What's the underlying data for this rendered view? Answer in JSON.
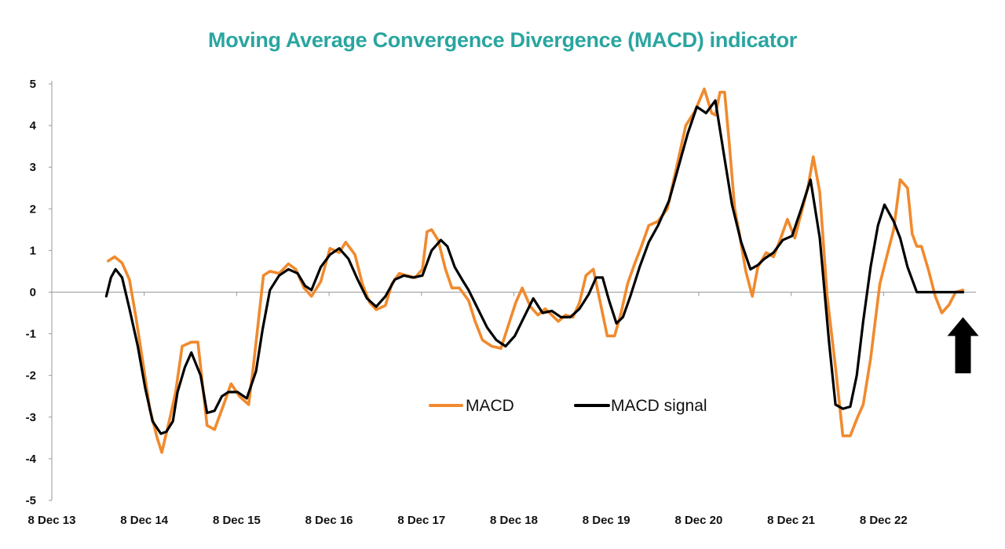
{
  "chart_data": {
    "type": "line",
    "title": "Moving Average Convergence Divergence (MACD) indicator",
    "xlabel": "",
    "ylabel": "",
    "ylim": [
      -5,
      5
    ],
    "y_ticks": [
      "5",
      "4",
      "3",
      "2",
      "1",
      "0",
      "-1",
      "-2",
      "-3",
      "-4",
      "-5"
    ],
    "x_ticks": [
      "8 Dec 13",
      "8 Dec 14",
      "8 Dec 15",
      "8 Dec 16",
      "8 Dec 17",
      "8 Dec 18",
      "8 Dec 19",
      "8 Dec 20",
      "8 Dec 21",
      "8 Dec 22"
    ],
    "x_range": [
      2013.94,
      2023.94
    ],
    "legend_position": "center",
    "grid": false,
    "colors": {
      "title": "#2aa5a0",
      "macd": "#f08a2e",
      "signal": "#000000",
      "axis": "#999999",
      "arrow": "#000000"
    },
    "annotation": {
      "icon": "up-arrow-icon",
      "x": 2023.8,
      "y_tip": -0.6,
      "y_base": -1.95
    },
    "series": [
      {
        "name": "MACD",
        "x": [
          2014.55,
          2014.62,
          2014.7,
          2014.78,
          2014.85,
          2014.92,
          2015.0,
          2015.08,
          2015.13,
          2015.22,
          2015.28,
          2015.35,
          2015.45,
          2015.52,
          2015.57,
          2015.62,
          2015.7,
          2015.8,
          2015.88,
          2015.97,
          2016.07,
          2016.12,
          2016.17,
          2016.23,
          2016.3,
          2016.4,
          2016.5,
          2016.58,
          2016.67,
          2016.75,
          2016.85,
          2016.95,
          2017.05,
          2017.12,
          2017.22,
          2017.3,
          2017.38,
          2017.45,
          2017.55,
          2017.62,
          2017.7,
          2017.78,
          2017.87,
          2017.95,
          2018.0,
          2018.05,
          2018.12,
          2018.2,
          2018.27,
          2018.35,
          2018.45,
          2018.52,
          2018.6,
          2018.7,
          2018.8,
          2018.88,
          2018.96,
          2019.03,
          2019.12,
          2019.2,
          2019.28,
          2019.35,
          2019.42,
          2019.5,
          2019.58,
          2019.65,
          2019.72,
          2019.8,
          2019.88,
          2019.95,
          2020.03,
          2020.1,
          2020.17,
          2020.25,
          2020.32,
          2020.4,
          2020.5,
          2020.6,
          2020.7,
          2020.8,
          2020.9,
          2021.0,
          2021.08,
          2021.12,
          2021.17,
          2021.22,
          2021.27,
          2021.33,
          2021.38,
          2021.45,
          2021.52,
          2021.58,
          2021.67,
          2021.75,
          2021.82,
          2021.9,
          2021.98,
          2022.05,
          2022.12,
          2022.18,
          2022.25,
          2022.33,
          2022.42,
          2022.5,
          2022.58,
          2022.66,
          2022.72,
          2022.8,
          2022.9,
          2022.98,
          2023.05,
          2023.12,
          2023.2,
          2023.25,
          2023.3,
          2023.35,
          2023.43,
          2023.5,
          2023.57,
          2023.65,
          2023.72,
          2023.8
        ],
        "values": [
          0.75,
          0.85,
          0.7,
          0.3,
          -0.6,
          -1.6,
          -2.8,
          -3.5,
          -3.85,
          -3.0,
          -2.4,
          -1.3,
          -1.2,
          -1.2,
          -2.2,
          -3.2,
          -3.3,
          -2.7,
          -2.2,
          -2.5,
          -2.7,
          -1.8,
          -0.8,
          0.4,
          0.5,
          0.45,
          0.68,
          0.55,
          0.1,
          -0.1,
          0.25,
          1.05,
          0.95,
          1.2,
          0.9,
          0.2,
          -0.25,
          -0.42,
          -0.32,
          0.2,
          0.45,
          0.4,
          0.35,
          0.55,
          1.45,
          1.5,
          1.25,
          0.55,
          0.1,
          0.1,
          -0.2,
          -0.7,
          -1.15,
          -1.3,
          -1.35,
          -0.8,
          -0.25,
          0.1,
          -0.35,
          -0.55,
          -0.4,
          -0.55,
          -0.7,
          -0.55,
          -0.6,
          -0.25,
          0.4,
          0.55,
          -0.3,
          -1.05,
          -1.05,
          -0.5,
          0.2,
          0.7,
          1.1,
          1.6,
          1.7,
          2.0,
          3.0,
          4.0,
          4.35,
          4.88,
          4.3,
          4.25,
          4.8,
          4.8,
          3.6,
          2.0,
          1.4,
          0.5,
          -0.1,
          0.6,
          0.95,
          0.85,
          1.25,
          1.75,
          1.3,
          1.9,
          2.5,
          3.25,
          2.4,
          -0.1,
          -1.8,
          -3.45,
          -3.45,
          -3.0,
          -2.7,
          -1.6,
          0.2,
          0.9,
          1.5,
          2.7,
          2.5,
          1.4,
          1.1,
          1.1,
          0.5,
          -0.1,
          -0.5,
          -0.3,
          0.0,
          0.05
        ]
      },
      {
        "name": "MACD signal",
        "x": [
          2014.53,
          2014.58,
          2014.63,
          2014.7,
          2014.78,
          2014.87,
          2014.95,
          2015.03,
          2015.12,
          2015.18,
          2015.25,
          2015.3,
          2015.38,
          2015.45,
          2015.55,
          2015.62,
          2015.7,
          2015.78,
          2015.85,
          2015.95,
          2016.05,
          2016.15,
          2016.22,
          2016.3,
          2016.4,
          2016.5,
          2016.6,
          2016.68,
          2016.75,
          2016.85,
          2016.95,
          2017.05,
          2017.15,
          2017.25,
          2017.35,
          2017.45,
          2017.55,
          2017.65,
          2017.75,
          2017.85,
          2017.95,
          2018.05,
          2018.15,
          2018.22,
          2018.3,
          2018.38,
          2018.45,
          2018.55,
          2018.65,
          2018.75,
          2018.85,
          2018.95,
          2019.05,
          2019.15,
          2019.25,
          2019.35,
          2019.45,
          2019.55,
          2019.65,
          2019.75,
          2019.83,
          2019.9,
          2019.97,
          2020.05,
          2020.12,
          2020.2,
          2020.3,
          2020.4,
          2020.5,
          2020.62,
          2020.72,
          2020.82,
          2020.92,
          2021.02,
          2021.12,
          2021.22,
          2021.3,
          2021.4,
          2021.5,
          2021.58,
          2021.65,
          2021.75,
          2021.85,
          2021.95,
          2022.05,
          2022.15,
          2022.25,
          2022.35,
          2022.42,
          2022.5,
          2022.58,
          2022.65,
          2022.72,
          2022.8,
          2022.88,
          2022.95,
          2023.05,
          2023.12,
          2023.2,
          2023.3,
          2023.4,
          2023.48,
          2023.55,
          2023.62,
          2023.7,
          2023.8
        ],
        "values": [
          -0.1,
          0.35,
          0.55,
          0.35,
          -0.4,
          -1.3,
          -2.3,
          -3.1,
          -3.4,
          -3.35,
          -3.1,
          -2.4,
          -1.8,
          -1.45,
          -2.0,
          -2.9,
          -2.85,
          -2.5,
          -2.4,
          -2.4,
          -2.55,
          -1.9,
          -0.9,
          0.05,
          0.4,
          0.55,
          0.45,
          0.15,
          0.05,
          0.6,
          0.9,
          1.05,
          0.8,
          0.3,
          -0.15,
          -0.35,
          -0.1,
          0.3,
          0.4,
          0.35,
          0.4,
          1.0,
          1.25,
          1.1,
          0.6,
          0.3,
          0.05,
          -0.4,
          -0.85,
          -1.15,
          -1.3,
          -1.05,
          -0.6,
          -0.15,
          -0.5,
          -0.45,
          -0.6,
          -0.6,
          -0.4,
          -0.05,
          0.35,
          0.35,
          -0.2,
          -0.75,
          -0.6,
          -0.1,
          0.6,
          1.2,
          1.6,
          2.2,
          3.0,
          3.8,
          4.45,
          4.3,
          4.6,
          3.2,
          2.1,
          1.2,
          0.55,
          0.65,
          0.8,
          0.95,
          1.25,
          1.35,
          2.0,
          2.7,
          1.3,
          -1.2,
          -2.7,
          -2.8,
          -2.75,
          -2.0,
          -0.7,
          0.6,
          1.6,
          2.1,
          1.7,
          1.3,
          0.6,
          0.0,
          0.0,
          0.0,
          0.0,
          0.0,
          0.0,
          0.0
        ]
      }
    ]
  }
}
